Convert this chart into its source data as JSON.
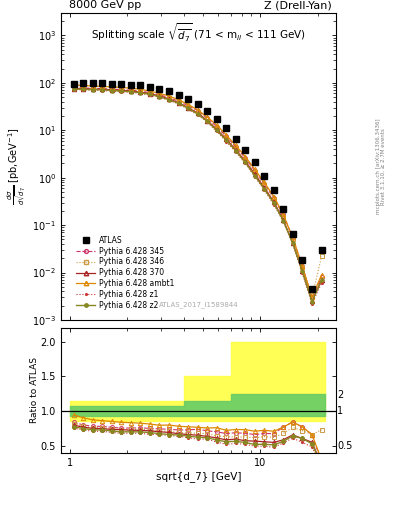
{
  "title_top_left": "8000 GeV pp",
  "title_top_right": "Z (Drell-Yan)",
  "main_title": "Splitting scale $\\sqrt{\\overline{d_7}}$ (71 < m$_{ll}$ < 111 GeV)",
  "watermark": "ATLAS_2017_I1589844",
  "right_label1": "mcplots.cern.ch [arXiv:1306.3436]",
  "right_label2": "Rivet 3.1.10, ≥ 2.7M events",
  "ylabel_main": "dσ\n/dsqrt[d_7] [pb,GeV⁻¹]",
  "ylabel_ratio": "Ratio to ATLAS",
  "xlabel": "sqrt{d_7} [GeV]",
  "x_ATLAS": [
    1.05,
    1.18,
    1.32,
    1.48,
    1.66,
    1.87,
    2.1,
    2.35,
    2.64,
    2.96,
    3.32,
    3.73,
    4.18,
    4.7,
    5.27,
    5.91,
    6.63,
    7.44,
    8.35,
    9.37,
    10.5,
    11.8,
    13.2,
    14.8,
    16.6,
    18.7,
    21.0
  ],
  "y_ATLAS": [
    95,
    97,
    98,
    97,
    96,
    95,
    92,
    88,
    82,
    75,
    66,
    56,
    45,
    35,
    25,
    17,
    11,
    6.5,
    3.8,
    2.1,
    1.1,
    0.56,
    0.22,
    0.065,
    0.018,
    0.0045,
    0.03
  ],
  "x_345": [
    1.05,
    1.18,
    1.32,
    1.48,
    1.66,
    1.87,
    2.1,
    2.35,
    2.64,
    2.96,
    3.32,
    3.73,
    4.18,
    4.7,
    5.27,
    5.91,
    6.63,
    7.44,
    8.35,
    9.37,
    10.5,
    11.8,
    13.2,
    14.8,
    16.6,
    18.7,
    21.0
  ],
  "y_345": [
    80,
    78,
    77,
    76,
    74,
    72,
    70,
    67,
    62,
    56,
    49,
    41,
    33,
    26,
    18,
    12,
    7.5,
    4.5,
    2.6,
    1.4,
    0.75,
    0.38,
    0.17,
    0.055,
    0.014,
    0.003,
    0.008
  ],
  "x_346": [
    1.05,
    1.18,
    1.32,
    1.48,
    1.66,
    1.87,
    2.1,
    2.35,
    2.64,
    2.96,
    3.32,
    3.73,
    4.18,
    4.7,
    5.27,
    5.91,
    6.63,
    7.44,
    8.35,
    9.37,
    10.5,
    11.8,
    13.2,
    14.8,
    16.6,
    18.7,
    21.0
  ],
  "y_346": [
    78,
    76,
    75,
    74,
    72,
    70,
    68,
    65,
    60,
    54,
    47,
    39,
    31,
    24,
    17,
    11,
    7.0,
    4.1,
    2.4,
    1.3,
    0.7,
    0.35,
    0.15,
    0.05,
    0.013,
    0.003,
    0.022
  ],
  "x_370": [
    1.05,
    1.18,
    1.32,
    1.48,
    1.66,
    1.87,
    2.1,
    2.35,
    2.64,
    2.96,
    3.32,
    3.73,
    4.18,
    4.7,
    5.27,
    5.91,
    6.63,
    7.44,
    8.35,
    9.37,
    10.5,
    11.8,
    13.2,
    14.8,
    16.6,
    18.7,
    21.0
  ],
  "y_370": [
    76,
    75,
    74,
    73,
    71,
    70,
    67,
    64,
    59,
    53,
    46,
    38,
    30,
    23,
    16,
    10.5,
    6.5,
    3.9,
    2.2,
    1.2,
    0.62,
    0.31,
    0.13,
    0.043,
    0.011,
    0.0025,
    0.007
  ],
  "x_ambt1": [
    1.05,
    1.18,
    1.32,
    1.48,
    1.66,
    1.87,
    2.1,
    2.35,
    2.64,
    2.96,
    3.32,
    3.73,
    4.18,
    4.7,
    5.27,
    5.91,
    6.63,
    7.44,
    8.35,
    9.37,
    10.5,
    11.8,
    13.2,
    14.8,
    16.6,
    18.7,
    21.0
  ],
  "y_ambt1": [
    90,
    88,
    86,
    84,
    82,
    80,
    77,
    73,
    67,
    60,
    53,
    44,
    35,
    27,
    19,
    13,
    8.0,
    4.8,
    2.8,
    1.5,
    0.8,
    0.4,
    0.17,
    0.055,
    0.014,
    0.003,
    0.009
  ],
  "x_z1": [
    1.05,
    1.18,
    1.32,
    1.48,
    1.66,
    1.87,
    2.1,
    2.35,
    2.64,
    2.96,
    3.32,
    3.73,
    4.18,
    4.7,
    5.27,
    5.91,
    6.63,
    7.44,
    8.35,
    9.37,
    10.5,
    11.8,
    13.2,
    14.8,
    16.6,
    18.7,
    21.0
  ],
  "y_z1": [
    72,
    71,
    70,
    69,
    67,
    65,
    63,
    60,
    55,
    50,
    43,
    36,
    28,
    21,
    15,
    9.5,
    5.8,
    3.5,
    2.0,
    1.05,
    0.55,
    0.27,
    0.12,
    0.04,
    0.01,
    0.0022,
    0.006
  ],
  "x_z2": [
    1.05,
    1.18,
    1.32,
    1.48,
    1.66,
    1.87,
    2.1,
    2.35,
    2.64,
    2.96,
    3.32,
    3.73,
    4.18,
    4.7,
    5.27,
    5.91,
    6.63,
    7.44,
    8.35,
    9.37,
    10.5,
    11.8,
    13.2,
    14.8,
    16.6,
    18.7,
    21.0
  ],
  "y_z2": [
    74,
    73,
    72,
    71,
    69,
    67,
    65,
    62,
    57,
    51,
    44,
    37,
    29,
    22,
    15.5,
    10,
    6.2,
    3.7,
    2.1,
    1.1,
    0.58,
    0.29,
    0.125,
    0.042,
    0.011,
    0.0024,
    0.007
  ],
  "color_ATLAS": "#000000",
  "color_345": "#cc3366",
  "color_346": "#cc9944",
  "color_370": "#aa2222",
  "color_ambt1": "#dd8800",
  "color_z1": "#cc3333",
  "color_z2": "#888822",
  "xlim": [
    0.9,
    25
  ],
  "ylim_main": [
    0.001,
    3000
  ],
  "ylim_ratio": [
    0.4,
    2.2
  ]
}
